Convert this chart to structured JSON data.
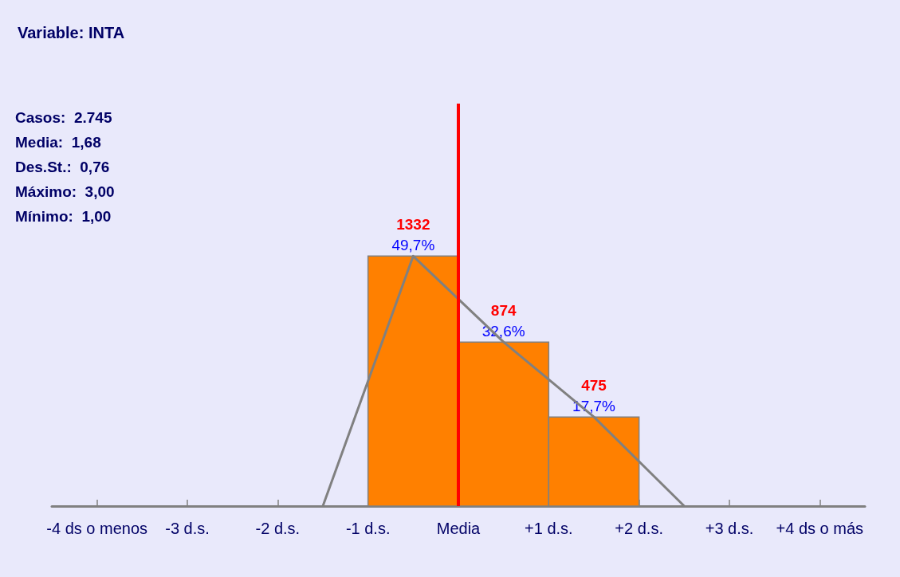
{
  "chart_data": {
    "type": "histogram",
    "title": "Variable: INTA",
    "series": [
      {
        "bins": [
          -1,
          0,
          1,
          2
        ],
        "values": [
          1332,
          874,
          475
        ],
        "color": "#ff8000",
        "value_labels": [
          "1332",
          "874",
          "475"
        ]
      },
      {
        "type": "line",
        "x": [
          -1.5,
          -0.5,
          0.5,
          1.5,
          2.5
        ],
        "values": [
          0,
          1332,
          874,
          475,
          0
        ],
        "color": "#808080"
      }
    ],
    "marker": "none",
    "grid": false,
    "tick_labels": "x",
    "xlim": [
      -4.5,
      4.5
    ],
    "xticks": [
      {
        "value": -4,
        "label": "-4 ds o menos"
      },
      {
        "value": -3,
        "label": "-3 d.s."
      },
      {
        "value": -2,
        "label": "-2 d.s."
      },
      {
        "value": -1,
        "label": "-1 d.s."
      },
      {
        "value": 0,
        "label": "Media"
      },
      {
        "value": 1,
        "label": "+1 d.s."
      },
      {
        "value": 2,
        "label": "+2 d.s."
      },
      {
        "value": 3,
        "label": "+3 d.s."
      },
      {
        "value": 4,
        "label": "+4 ds o más"
      }
    ],
    "ref_lines": [
      {
        "axis": "x",
        "value": 0,
        "color": "#ff0000"
      }
    ],
    "annotations": [
      {
        "text": "49,7%",
        "x": -0.5,
        "y": 1332
      },
      {
        "text": "32,6%",
        "x": 0.5,
        "y": 874
      },
      {
        "text": "17,7%",
        "x": 1.5,
        "y": 475
      },
      "Casos:   2.745",
      "Media:   1,68",
      "Des.St.:  0,76",
      "Máximo:  3,00",
      "Mínimo:  1,00"
    ]
  }
}
